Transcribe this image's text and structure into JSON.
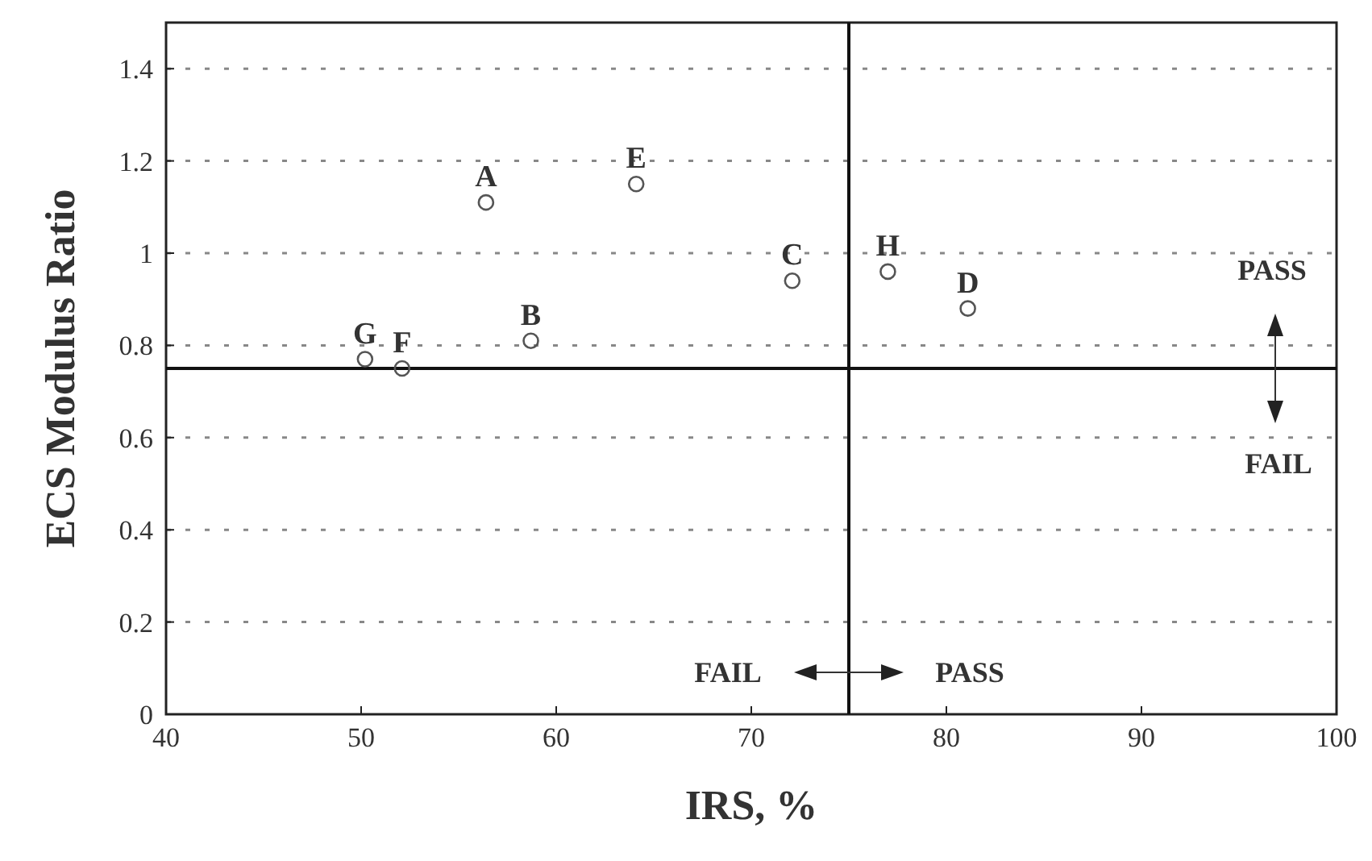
{
  "chart_data": {
    "type": "scatter",
    "xlabel": "IRS, %",
    "ylabel": "ECS Modulus Ratio",
    "xlim": [
      40,
      100
    ],
    "xticks": [
      40,
      50,
      60,
      70,
      80,
      90,
      100
    ],
    "ylim": [
      0,
      1.5
    ],
    "yticks": [
      0,
      0.2,
      0.4,
      0.6,
      0.8,
      1,
      1.2,
      1.4
    ],
    "grid": "y",
    "marker": "circle",
    "series": [
      {
        "color": "#555555",
        "x": [
          56.4,
          58.7,
          72.1,
          81.1,
          64.1,
          52.1,
          50.2,
          77.0
        ],
        "values": [
          1.11,
          0.81,
          0.94,
          0.88,
          1.15,
          0.75,
          0.77,
          0.96
        ]
      }
    ],
    "ref_lines": [
      {
        "axis": "x",
        "value": 75,
        "color": "#111111"
      },
      {
        "axis": "y",
        "value": 0.75,
        "color": "#111111"
      }
    ],
    "annotations": [
      {
        "text": "A",
        "x": 56.4,
        "y": 1.11
      },
      {
        "text": "B",
        "x": 58.7,
        "y": 0.81
      },
      {
        "text": "C",
        "x": 72.1,
        "y": 0.94
      },
      {
        "text": "D",
        "x": 81.1,
        "y": 0.88
      },
      {
        "text": "E",
        "x": 64.1,
        "y": 1.15
      },
      {
        "text": "F",
        "x": 52.1,
        "y": 0.75
      },
      {
        "text": "G",
        "x": 50.2,
        "y": 0.77
      },
      {
        "text": "H",
        "x": 77.0,
        "y": 0.96
      },
      "FAIL",
      "PASS",
      "PASS",
      "FAIL"
    ]
  }
}
